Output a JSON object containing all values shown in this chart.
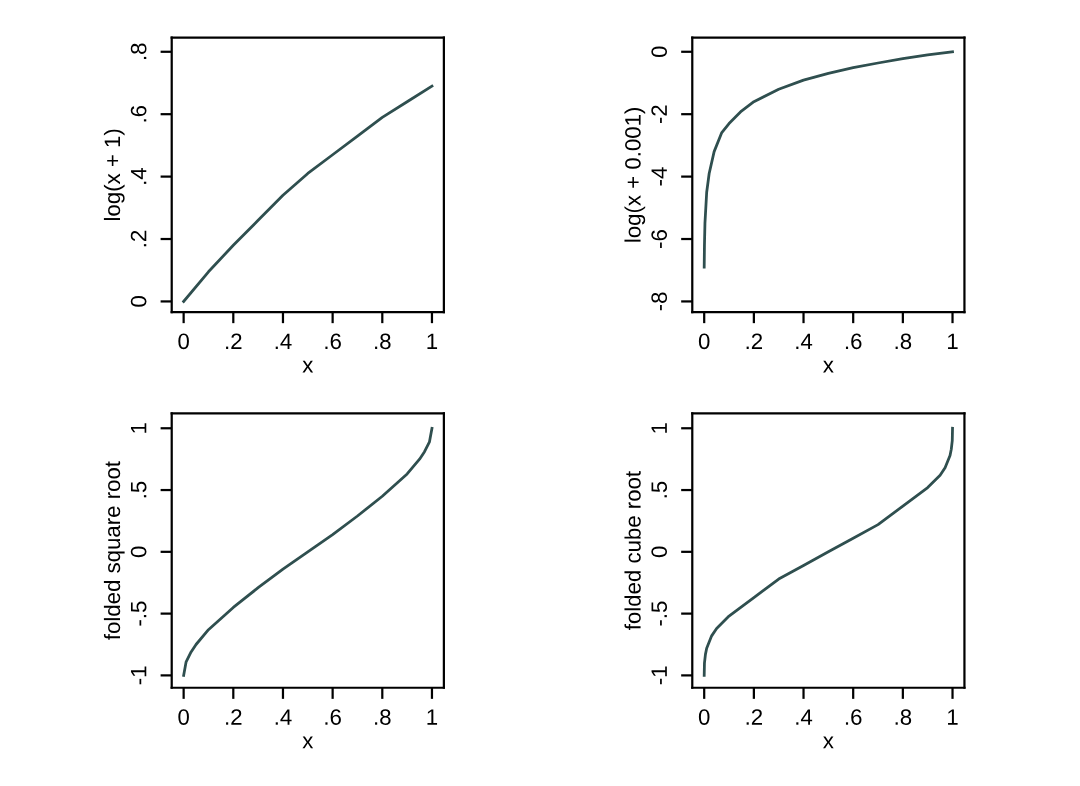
{
  "chart_data": [
    {
      "type": "line",
      "xlabel": "x",
      "ylabel": "log(x + 1)",
      "xlim": [
        -0.048,
        1.048
      ],
      "ylim": [
        -0.034,
        0.845
      ],
      "xticks": [
        0,
        {
          "value": 0.2,
          "label": ".2"
        },
        {
          "value": 0.4,
          "label": ".4"
        },
        {
          "value": 0.6,
          "label": ".6"
        },
        {
          "value": 0.8,
          "label": ".8"
        },
        1
      ],
      "yticks": [
        0,
        {
          "value": 0.2,
          "label": ".2"
        },
        {
          "value": 0.4,
          "label": ".4"
        },
        {
          "value": 0.6,
          "label": ".6"
        },
        {
          "value": 0.8,
          "label": ".8"
        }
      ],
      "series": [
        {
          "color": "#2f4f4f",
          "x": [
            0,
            0.1,
            0.2,
            0.3,
            0.4,
            0.5,
            0.6,
            0.7,
            0.8,
            0.9,
            1
          ],
          "values": [
            0,
            0.095,
            0.18,
            0.26,
            0.34,
            0.41,
            0.47,
            0.53,
            0.59,
            0.64,
            0.69
          ]
        }
      ]
    },
    {
      "type": "line",
      "xlabel": "x",
      "ylabel": "log(x + 0.001)",
      "xlim": [
        -0.048,
        1.048
      ],
      "ylim": [
        -8.34,
        0.45
      ],
      "xticks": [
        0,
        {
          "value": 0.2,
          "label": ".2"
        },
        {
          "value": 0.4,
          "label": ".4"
        },
        {
          "value": 0.6,
          "label": ".6"
        },
        {
          "value": 0.8,
          "label": ".8"
        },
        1
      ],
      "yticks": [
        -8,
        -6,
        -4,
        -2,
        0
      ],
      "series": [
        {
          "color": "#2f4f4f",
          "x": [
            0,
            0.001,
            0.003,
            0.01,
            0.02,
            0.04,
            0.07,
            0.1,
            0.15,
            0.2,
            0.3,
            0.4,
            0.5,
            0.6,
            0.7,
            0.8,
            0.9,
            1
          ],
          "values": [
            -6.9,
            -6.2,
            -5.5,
            -4.5,
            -3.9,
            -3.2,
            -2.6,
            -2.3,
            -1.9,
            -1.6,
            -1.2,
            -0.91,
            -0.69,
            -0.51,
            -0.36,
            -0.22,
            -0.1,
            0
          ]
        }
      ]
    },
    {
      "type": "line",
      "xlabel": "x",
      "ylabel": "folded square root",
      "xlim": [
        -0.048,
        1.048
      ],
      "ylim": [
        -1.1,
        1.12
      ],
      "xticks": [
        0,
        {
          "value": 0.2,
          "label": ".2"
        },
        {
          "value": 0.4,
          "label": ".4"
        },
        {
          "value": 0.6,
          "label": ".6"
        },
        {
          "value": 0.8,
          "label": ".8"
        },
        1
      ],
      "yticks": [
        {
          "value": -1,
          "label": "-1"
        },
        {
          "value": -0.5,
          "label": "-.5"
        },
        0,
        {
          "value": 0.5,
          "label": ".5"
        },
        1
      ],
      "series": [
        {
          "color": "#2f4f4f",
          "x": [
            0,
            0.01,
            0.03,
            0.05,
            0.1,
            0.2,
            0.3,
            0.4,
            0.5,
            0.6,
            0.7,
            0.8,
            0.9,
            0.95,
            0.97,
            0.99,
            1
          ],
          "values": [
            -1,
            -0.89,
            -0.81,
            -0.75,
            -0.63,
            -0.45,
            -0.29,
            -0.14,
            0,
            0.14,
            0.29,
            0.45,
            0.63,
            0.75,
            0.81,
            0.89,
            1
          ]
        }
      ]
    },
    {
      "type": "line",
      "xlabel": "x",
      "ylabel": "folded cube root",
      "xlim": [
        -0.048,
        1.048
      ],
      "ylim": [
        -1.1,
        1.12
      ],
      "xticks": [
        0,
        {
          "value": 0.2,
          "label": ".2"
        },
        {
          "value": 0.4,
          "label": ".4"
        },
        {
          "value": 0.6,
          "label": ".6"
        },
        {
          "value": 0.8,
          "label": ".8"
        },
        1
      ],
      "yticks": [
        {
          "value": -1,
          "label": "-1"
        },
        {
          "value": -0.5,
          "label": "-.5"
        },
        0,
        {
          "value": 0.5,
          "label": ".5"
        },
        1
      ],
      "series": [
        {
          "color": "#2f4f4f",
          "x": [
            0,
            0.001,
            0.005,
            0.01,
            0.03,
            0.05,
            0.1,
            0.2,
            0.3,
            0.4,
            0.5,
            0.6,
            0.7,
            0.8,
            0.9,
            0.95,
            0.97,
            0.99,
            0.995,
            0.999,
            1
          ],
          "values": [
            -1,
            -0.9,
            -0.83,
            -0.78,
            -0.68,
            -0.62,
            -0.52,
            -0.37,
            -0.22,
            -0.11,
            0,
            0.11,
            0.22,
            0.37,
            0.52,
            0.62,
            0.68,
            0.78,
            0.83,
            0.9,
            1
          ]
        }
      ]
    }
  ]
}
